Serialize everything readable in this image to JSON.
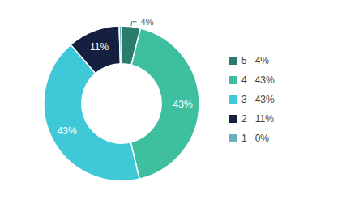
{
  "chart_data": {
    "type": "pie",
    "categories": [
      "5   4%",
      "4   43%",
      "3   43%",
      "2   11%",
      "1   0%"
    ],
    "values": [
      4,
      43,
      43,
      11,
      0.5
    ],
    "value_labels": [
      "4%",
      "43%",
      "43%",
      "11%",
      null
    ],
    "data_labels": true,
    "colors": [
      "#2a7d6e",
      "#3dbfa0",
      "#3ec8d8",
      "#152040",
      "#6aafc0"
    ],
    "legend": "right"
  }
}
